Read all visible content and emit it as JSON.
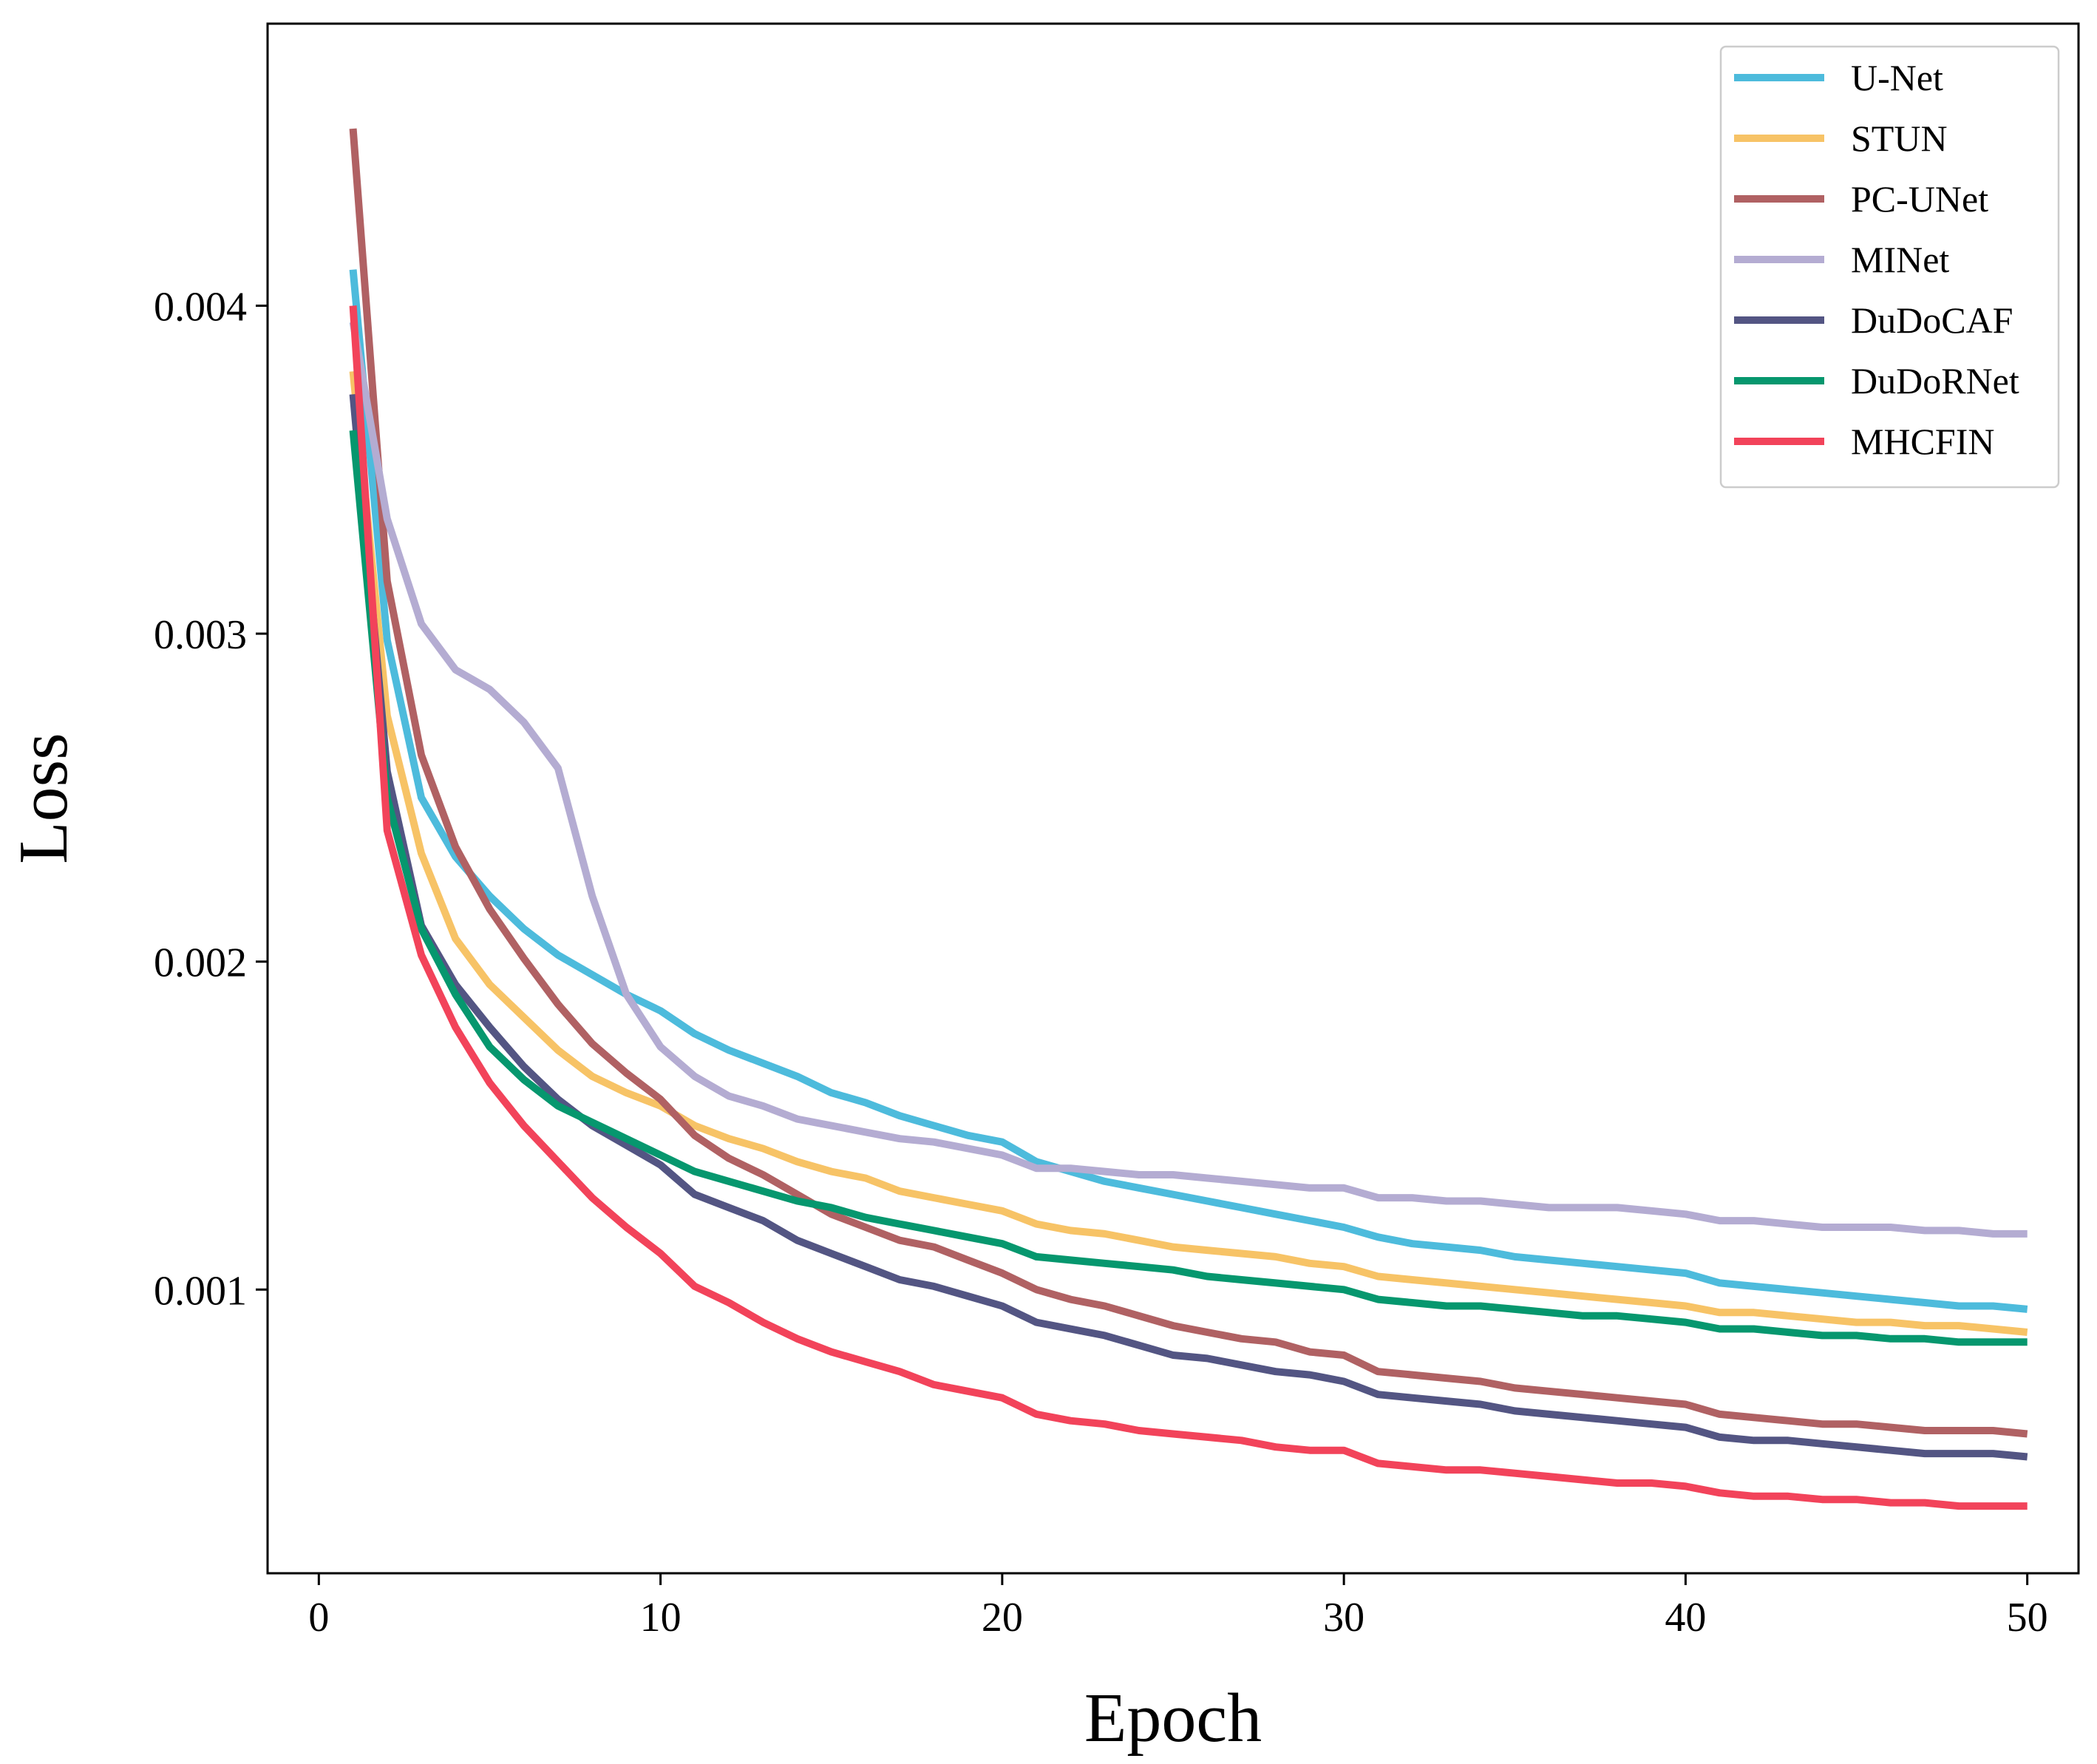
{
  "chart_data": {
    "type": "line",
    "title": "",
    "xlabel": "Epoch",
    "ylabel": "Loss",
    "xlim": [
      -1.5,
      51.5
    ],
    "ylim": [
      0.000135,
      0.00486
    ],
    "xticks": [
      0,
      10,
      20,
      30,
      40,
      50
    ],
    "xtick_labels": [
      "0",
      "10",
      "20",
      "30",
      "40",
      "50"
    ],
    "yticks": [
      0.001,
      0.002,
      0.003,
      0.004
    ],
    "ytick_labels": [
      "0.001",
      "0.002",
      "0.003",
      "0.004"
    ],
    "grid": false,
    "legend_position": "top-right",
    "x": [
      1,
      2,
      3,
      4,
      5,
      6,
      7,
      8,
      9,
      10,
      11,
      12,
      13,
      14,
      15,
      16,
      17,
      18,
      19,
      20,
      21,
      22,
      23,
      24,
      25,
      26,
      27,
      28,
      29,
      30,
      31,
      32,
      33,
      34,
      35,
      36,
      37,
      38,
      39,
      40,
      41,
      42,
      43,
      44,
      45,
      46,
      47,
      48,
      49,
      50
    ],
    "series": [
      {
        "name": "U-Net",
        "color": "#4dbbdc",
        "values": [
          0.00411,
          0.00298,
          0.0025,
          0.00232,
          0.0022,
          0.0021,
          0.00202,
          0.00196,
          0.0019,
          0.00185,
          0.00178,
          0.00173,
          0.00169,
          0.00165,
          0.0016,
          0.00157,
          0.00153,
          0.0015,
          0.00147,
          0.00145,
          0.00139,
          0.00136,
          0.00133,
          0.00131,
          0.00129,
          0.00127,
          0.00125,
          0.00123,
          0.00121,
          0.00119,
          0.00116,
          0.00114,
          0.00113,
          0.00112,
          0.0011,
          0.00109,
          0.00108,
          0.00107,
          0.00106,
          0.00105,
          0.00102,
          0.00101,
          0.001,
          0.00099,
          0.00098,
          0.00097,
          0.00096,
          0.00095,
          0.00095,
          0.00094
        ]
      },
      {
        "name": "STUN",
        "color": "#f7c366",
        "values": [
          0.0038,
          0.00275,
          0.00233,
          0.00207,
          0.00193,
          0.00183,
          0.00173,
          0.00165,
          0.0016,
          0.00156,
          0.0015,
          0.00146,
          0.00143,
          0.00139,
          0.00136,
          0.00134,
          0.0013,
          0.00128,
          0.00126,
          0.00124,
          0.0012,
          0.00118,
          0.00117,
          0.00115,
          0.00113,
          0.00112,
          0.00111,
          0.0011,
          0.00108,
          0.00107,
          0.00104,
          0.00103,
          0.00102,
          0.00101,
          0.001,
          0.00099,
          0.00098,
          0.00097,
          0.00096,
          0.00095,
          0.00093,
          0.00093,
          0.00092,
          0.00091,
          0.0009,
          0.0009,
          0.00089,
          0.00089,
          0.00088,
          0.00087
        ]
      },
      {
        "name": "PC-UNet",
        "color": "#b06163",
        "values": [
          0.00454,
          0.00316,
          0.00263,
          0.00235,
          0.00216,
          0.00201,
          0.00187,
          0.00175,
          0.00166,
          0.00158,
          0.00147,
          0.0014,
          0.00135,
          0.00129,
          0.00123,
          0.00119,
          0.00115,
          0.00113,
          0.00109,
          0.00105,
          0.001,
          0.00097,
          0.00095,
          0.00092,
          0.00089,
          0.00087,
          0.00085,
          0.00084,
          0.00081,
          0.0008,
          0.00075,
          0.00074,
          0.00073,
          0.00072,
          0.0007,
          0.00069,
          0.00068,
          0.00067,
          0.00066,
          0.00065,
          0.00062,
          0.00061,
          0.0006,
          0.00059,
          0.00059,
          0.00058,
          0.00057,
          0.00057,
          0.00057,
          0.00056
        ]
      },
      {
        "name": "MINet",
        "color": "#b4acd2",
        "values": [
          0.00395,
          0.00335,
          0.00303,
          0.00289,
          0.00283,
          0.00273,
          0.00259,
          0.0022,
          0.0019,
          0.00174,
          0.00165,
          0.00159,
          0.00156,
          0.00152,
          0.0015,
          0.00148,
          0.00146,
          0.00145,
          0.00143,
          0.00141,
          0.00137,
          0.00137,
          0.00136,
          0.00135,
          0.00135,
          0.00134,
          0.00133,
          0.00132,
          0.00131,
          0.00131,
          0.00128,
          0.00128,
          0.00127,
          0.00127,
          0.00126,
          0.00125,
          0.00125,
          0.00125,
          0.00124,
          0.00123,
          0.00121,
          0.00121,
          0.0012,
          0.00119,
          0.00119,
          0.00119,
          0.00118,
          0.00118,
          0.00117,
          0.00117
        ]
      },
      {
        "name": "DuDoCAF",
        "color": "#535583",
        "values": [
          0.00373,
          0.00258,
          0.00211,
          0.00193,
          0.0018,
          0.00168,
          0.00158,
          0.0015,
          0.00144,
          0.00138,
          0.00129,
          0.00125,
          0.00121,
          0.00115,
          0.00111,
          0.00107,
          0.00103,
          0.00101,
          0.00098,
          0.00095,
          0.0009,
          0.00088,
          0.00086,
          0.00083,
          0.0008,
          0.00079,
          0.00077,
          0.00075,
          0.00074,
          0.00072,
          0.00068,
          0.00067,
          0.00066,
          0.00065,
          0.00063,
          0.00062,
          0.00061,
          0.0006,
          0.00059,
          0.00058,
          0.00055,
          0.00054,
          0.00054,
          0.00053,
          0.00052,
          0.00051,
          0.0005,
          0.0005,
          0.0005,
          0.00049
        ]
      },
      {
        "name": "DuDoRNet",
        "color": "#06976e",
        "values": [
          0.00362,
          0.0025,
          0.0021,
          0.0019,
          0.00174,
          0.00164,
          0.00156,
          0.00151,
          0.00146,
          0.00141,
          0.00136,
          0.00133,
          0.0013,
          0.00127,
          0.00125,
          0.00122,
          0.0012,
          0.00118,
          0.00116,
          0.00114,
          0.0011,
          0.00109,
          0.00108,
          0.00107,
          0.00106,
          0.00104,
          0.00103,
          0.00102,
          0.00101,
          0.001,
          0.00097,
          0.00096,
          0.00095,
          0.00095,
          0.00094,
          0.00093,
          0.00092,
          0.00092,
          0.00091,
          0.0009,
          0.00088,
          0.00088,
          0.00087,
          0.00086,
          0.00086,
          0.00085,
          0.00085,
          0.00084,
          0.00084,
          0.00084
        ]
      },
      {
        "name": "MHCFIN",
        "color": "#f2435a",
        "values": [
          0.004,
          0.0024,
          0.00202,
          0.0018,
          0.00163,
          0.0015,
          0.00139,
          0.00128,
          0.00119,
          0.00111,
          0.00101,
          0.00096,
          0.0009,
          0.00085,
          0.00081,
          0.00078,
          0.00075,
          0.00071,
          0.00069,
          0.00067,
          0.00062,
          0.0006,
          0.00059,
          0.00057,
          0.00056,
          0.00055,
          0.00054,
          0.00052,
          0.00051,
          0.00051,
          0.00047,
          0.00046,
          0.00045,
          0.00045,
          0.00044,
          0.00043,
          0.00042,
          0.00041,
          0.00041,
          0.0004,
          0.00038,
          0.00037,
          0.00037,
          0.00036,
          0.00036,
          0.00035,
          0.00035,
          0.00034,
          0.00034,
          0.00034
        ]
      }
    ]
  }
}
